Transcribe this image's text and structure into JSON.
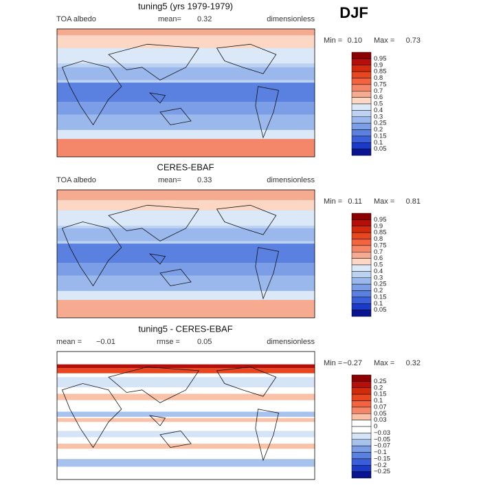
{
  "figure_label": "DJF",
  "panels": [
    {
      "title": "tuning5 (yrs 1979-1979)",
      "left_text": "TOA albedo",
      "mid_label": "mean=",
      "mid_value": "0.32",
      "units": "dimensionless",
      "min_label": "Min =",
      "min_value": "0.10",
      "max_label": "Max =",
      "max_value": "0.73",
      "colorbar_labels": [
        "0.95",
        "0.9",
        "0.85",
        "0.8",
        "0.75",
        "0.7",
        "0.6",
        "0.5",
        "0.4",
        "0.3",
        "0.25",
        "0.2",
        "0.15",
        "0.1",
        "0.05"
      ]
    },
    {
      "title": "CERES-EBAF",
      "left_text": "TOA albedo",
      "mid_label": "mean=",
      "mid_value": "0.33",
      "units": "dimensionless",
      "min_label": "Min =",
      "min_value": "0.11",
      "max_label": "Max =",
      "max_value": "0.81",
      "colorbar_labels": [
        "0.95",
        "0.9",
        "0.85",
        "0.8",
        "0.75",
        "0.7",
        "0.6",
        "0.5",
        "0.4",
        "0.3",
        "0.25",
        "0.2",
        "0.15",
        "0.1",
        "0.05"
      ]
    },
    {
      "title": "tuning5 - CERES-EBAF",
      "left_text": "mean =",
      "left_value": "−0.01",
      "mid_label": "rmse =",
      "mid_value": "0.05",
      "units": "dimensionless",
      "min_label": "Min =",
      "min_value": "−0.27",
      "max_label": "Max =",
      "max_value": "0.32",
      "colorbar_labels": [
        "0.25",
        "0.2",
        "0.15",
        "0.1",
        "0.07",
        "0.05",
        "0.03",
        "0",
        "−0.03",
        "−0.05",
        "−0.07",
        "−0.1",
        "−0.15",
        "−0.2",
        "−0.25"
      ]
    }
  ]
}
